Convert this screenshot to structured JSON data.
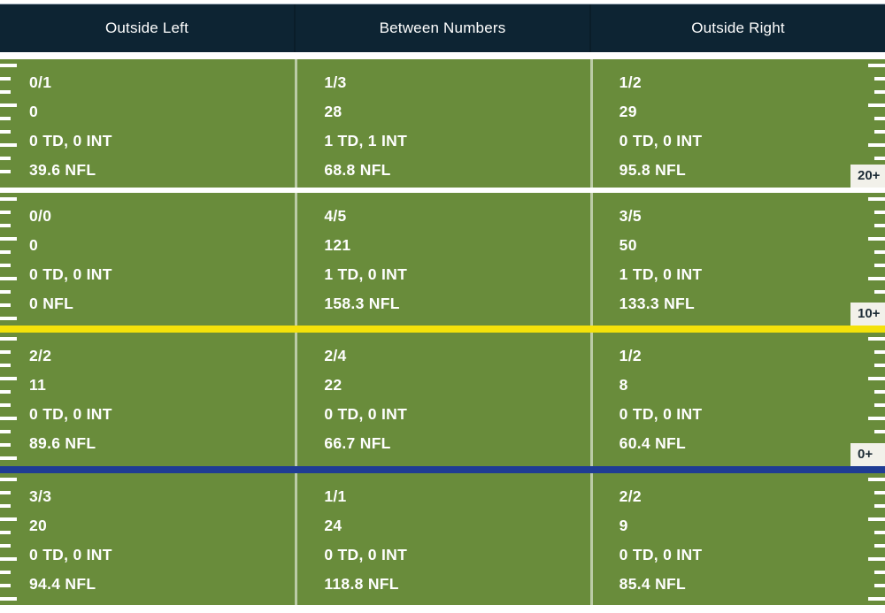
{
  "colors": {
    "header_bg": "#0d2433",
    "field_green": "#698c3b",
    "first_down_line_yellow": "#f4e20a",
    "scrimmage_line_blue": "#1f3c94",
    "hash_marks": "#ffffff",
    "zone_label_bg": "#f2f1ea",
    "zone_label_text": "#1d2c36",
    "cell_text": "#ffffff"
  },
  "chart_data": {
    "type": "table",
    "columns": [
      "Outside Left",
      "Between Numbers",
      "Outside Right"
    ],
    "zones": [
      {
        "depth_label": "20+",
        "cells": [
          {
            "comp_att": "0/1",
            "yards": "0",
            "td_int": "0 TD, 0 INT",
            "rating": "39.6 NFL"
          },
          {
            "comp_att": "1/3",
            "yards": "28",
            "td_int": "1 TD, 1 INT",
            "rating": "68.8 NFL"
          },
          {
            "comp_att": "1/2",
            "yards": "29",
            "td_int": "0 TD, 0 INT",
            "rating": "95.8 NFL"
          }
        ]
      },
      {
        "depth_label": "10+",
        "cells": [
          {
            "comp_att": "0/0",
            "yards": "0",
            "td_int": "0 TD, 0 INT",
            "rating": "0 NFL"
          },
          {
            "comp_att": "4/5",
            "yards": "121",
            "td_int": "1 TD, 0 INT",
            "rating": "158.3 NFL"
          },
          {
            "comp_att": "3/5",
            "yards": "50",
            "td_int": "1 TD, 0 INT",
            "rating": "133.3 NFL"
          }
        ]
      },
      {
        "depth_label": "0+",
        "cells": [
          {
            "comp_att": "2/2",
            "yards": "11",
            "td_int": "0 TD, 0 INT",
            "rating": "89.6 NFL"
          },
          {
            "comp_att": "2/4",
            "yards": "22",
            "td_int": "0 TD, 0 INT",
            "rating": "66.7 NFL"
          },
          {
            "comp_att": "1/2",
            "yards": "8",
            "td_int": "0 TD, 0 INT",
            "rating": "60.4 NFL"
          }
        ]
      },
      {
        "cells": [
          {
            "comp_att": "3/3",
            "yards": "20",
            "td_int": "0 TD, 0 INT",
            "rating": "94.4 NFL"
          },
          {
            "comp_att": "1/1",
            "yards": "24",
            "td_int": "0 TD, 0 INT",
            "rating": "118.8 NFL"
          },
          {
            "comp_att": "2/2",
            "yards": "9",
            "td_int": "0 TD, 0 INT",
            "rating": "85.4 NFL"
          }
        ]
      }
    ]
  }
}
